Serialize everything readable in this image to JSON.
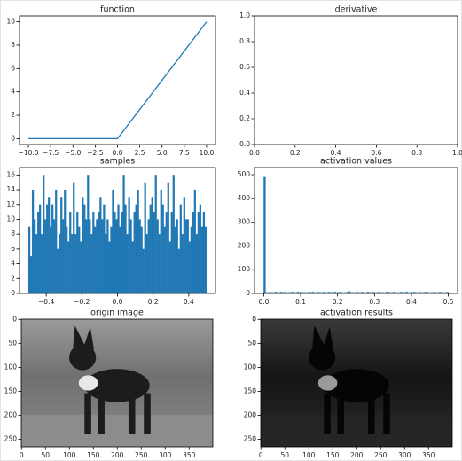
{
  "chart_data": [
    {
      "type": "line",
      "title": "function",
      "x": [
        -10,
        0,
        10
      ],
      "values": [
        0,
        0,
        10
      ],
      "color": "#1f77b4",
      "xlim": [
        -11,
        11
      ],
      "ylim": [
        -0.5,
        10.5
      ],
      "xticks": [
        {
          "value": -10,
          "label": "−10.0"
        },
        {
          "value": -7.5,
          "label": "−7.5"
        },
        {
          "value": -5,
          "label": "−5.0"
        },
        {
          "value": -2.5,
          "label": "−2.5"
        },
        {
          "value": 0,
          "label": "0.0"
        },
        {
          "value": 2.5,
          "label": "2.5"
        },
        {
          "value": 5,
          "label": "5.0"
        },
        {
          "value": 7.5,
          "label": "7.5"
        },
        {
          "value": 10,
          "label": "10.0"
        }
      ],
      "yticks": [
        0,
        2,
        4,
        6,
        8,
        10
      ]
    },
    {
      "type": "line",
      "title": "derivative",
      "xlim": [
        0,
        1
      ],
      "ylim": [
        0,
        1
      ],
      "xticks": [
        {
          "value": 0,
          "label": "0.0"
        },
        {
          "value": 0.2,
          "label": "0.2"
        },
        {
          "value": 0.4,
          "label": "0.4"
        },
        {
          "value": 0.6,
          "label": "0.6"
        },
        {
          "value": 0.8,
          "label": "0.8"
        },
        {
          "value": 1,
          "label": "1.0"
        }
      ],
      "yticks": [
        {
          "value": 0,
          "label": "0.0"
        },
        {
          "value": 0.2,
          "label": "0.2"
        },
        {
          "value": 0.4,
          "label": "0.4"
        },
        {
          "value": 0.6,
          "label": "0.6"
        },
        {
          "value": 0.8,
          "label": "0.8"
        },
        {
          "value": 1,
          "label": "1.0"
        }
      ]
    },
    {
      "type": "histogram",
      "title": "samples",
      "color": "#1f77b4",
      "bins": [
        -0.5,
        -0.49,
        -0.48,
        -0.47,
        -0.46,
        -0.45,
        -0.44,
        -0.43,
        -0.42,
        -0.41,
        -0.4,
        -0.39,
        -0.38,
        -0.37,
        -0.36,
        -0.35,
        -0.34,
        -0.33,
        -0.32,
        -0.31,
        -0.3,
        -0.29,
        -0.28,
        -0.27,
        -0.26,
        -0.25,
        -0.24,
        -0.23,
        -0.22,
        -0.21,
        -0.2,
        -0.19,
        -0.18,
        -0.17,
        -0.16,
        -0.15,
        -0.14,
        -0.13,
        -0.12,
        -0.11,
        -0.1,
        -0.09,
        -0.08,
        -0.07,
        -0.06,
        -0.05,
        -0.04,
        -0.03,
        -0.02,
        -0.01,
        0,
        0.01,
        0.02,
        0.03,
        0.04,
        0.05,
        0.06,
        0.07,
        0.08,
        0.09,
        0.1,
        0.11,
        0.12,
        0.13,
        0.14,
        0.15,
        0.16,
        0.17,
        0.18,
        0.19,
        0.2,
        0.21,
        0.22,
        0.23,
        0.24,
        0.25,
        0.26,
        0.27,
        0.28,
        0.29,
        0.3,
        0.31,
        0.32,
        0.33,
        0.34,
        0.35,
        0.36,
        0.37,
        0.38,
        0.39,
        0.4,
        0.41,
        0.42,
        0.43,
        0.44,
        0.45,
        0.46,
        0.47,
        0.48,
        0.49,
        0.5
      ],
      "values": [
        9,
        5,
        14,
        10,
        8,
        11,
        12,
        8,
        16,
        10,
        12,
        13,
        9,
        12,
        10,
        14,
        6,
        8,
        13,
        10,
        14,
        9,
        7,
        11,
        8,
        15,
        8,
        11,
        9,
        7,
        13,
        12,
        10,
        16,
        10,
        8,
        11,
        9,
        10,
        11,
        13,
        10,
        12,
        8,
        10,
        7,
        9,
        14,
        11,
        10,
        12,
        9,
        11,
        16,
        12,
        8,
        13,
        10,
        7,
        11,
        12,
        14,
        10,
        9,
        6,
        15,
        8,
        10,
        12,
        13,
        11,
        16,
        10,
        8,
        14,
        12,
        9,
        11,
        15,
        7,
        11,
        16,
        9,
        10,
        6,
        12,
        8,
        13,
        10,
        10,
        7,
        9,
        11,
        14,
        8,
        11,
        12,
        9,
        11,
        9
      ],
      "xlim": [
        -0.55,
        0.55
      ],
      "ylim": [
        0,
        17
      ],
      "xticks": [
        {
          "value": -0.4,
          "label": "−0.4"
        },
        {
          "value": -0.2,
          "label": "−0.2"
        },
        {
          "value": 0,
          "label": "0.0"
        },
        {
          "value": 0.2,
          "label": "0.2"
        },
        {
          "value": 0.4,
          "label": "0.4"
        }
      ],
      "yticks": [
        0,
        2,
        4,
        6,
        8,
        10,
        12,
        14,
        16
      ]
    },
    {
      "type": "histogram",
      "title": "activation values",
      "color": "#1f77b4",
      "bins": [
        0,
        0.005,
        0.01,
        0.015,
        0.02,
        0.025,
        0.03,
        0.035,
        0.04,
        0.045,
        0.05,
        0.055,
        0.06,
        0.065,
        0.07,
        0.075,
        0.08,
        0.085,
        0.09,
        0.095,
        0.1,
        0.105,
        0.11,
        0.115,
        0.12,
        0.125,
        0.13,
        0.135,
        0.14,
        0.145,
        0.15,
        0.155,
        0.16,
        0.165,
        0.17,
        0.175,
        0.18,
        0.185,
        0.19,
        0.195,
        0.2,
        0.205,
        0.21,
        0.215,
        0.22,
        0.225,
        0.23,
        0.235,
        0.24,
        0.245,
        0.25,
        0.255,
        0.26,
        0.265,
        0.27,
        0.275,
        0.28,
        0.285,
        0.29,
        0.295,
        0.3,
        0.305,
        0.31,
        0.315,
        0.32,
        0.325,
        0.33,
        0.335,
        0.34,
        0.345,
        0.35,
        0.355,
        0.36,
        0.365,
        0.37,
        0.375,
        0.38,
        0.385,
        0.39,
        0.395,
        0.4,
        0.405,
        0.41,
        0.415,
        0.42,
        0.425,
        0.43,
        0.435,
        0.44,
        0.445,
        0.45,
        0.455,
        0.46,
        0.465,
        0.47,
        0.475,
        0.48,
        0.485,
        0.49,
        0.495,
        0.5
      ],
      "values": [
        490,
        5,
        4,
        6,
        5,
        5,
        7,
        4,
        5,
        6,
        5,
        6,
        4,
        5,
        5,
        6,
        5,
        4,
        7,
        5,
        6,
        5,
        5,
        4,
        6,
        5,
        7,
        5,
        4,
        6,
        5,
        5,
        6,
        4,
        5,
        6,
        5,
        5,
        7,
        4,
        5,
        6,
        5,
        4,
        5,
        6,
        8,
        5,
        5,
        4,
        6,
        5,
        5,
        6,
        4,
        5,
        7,
        5,
        5,
        6,
        4,
        5,
        6,
        5,
        5,
        4,
        6,
        7,
        5,
        5,
        6,
        5,
        4,
        5,
        6,
        5,
        5,
        7,
        4,
        5,
        5,
        6,
        5,
        4,
        6,
        5,
        5,
        6,
        7,
        4,
        5,
        5,
        6,
        4,
        5,
        6,
        5,
        5,
        4,
        6
      ],
      "xlim": [
        -0.025,
        0.525
      ],
      "ylim": [
        0,
        530
      ],
      "xticks": [
        {
          "value": 0,
          "label": "0.0"
        },
        {
          "value": 0.1,
          "label": "0.1"
        },
        {
          "value": 0.2,
          "label": "0.2"
        },
        {
          "value": 0.3,
          "label": "0.3"
        },
        {
          "value": 0.4,
          "label": "0.4"
        },
        {
          "value": 0.5,
          "label": "0.5"
        }
      ],
      "yticks": [
        0,
        100,
        200,
        300,
        400,
        500
      ]
    },
    {
      "type": "image",
      "title": "origin image",
      "xlim": [
        -0.5,
        399.5
      ],
      "ylim": [
        265.5,
        -0.5
      ],
      "xticks": [
        0,
        50,
        100,
        150,
        200,
        250,
        300,
        350
      ],
      "yticks": [
        0,
        50,
        100,
        150,
        200,
        250
      ]
    },
    {
      "type": "image",
      "title": "activation results",
      "xlim": [
        -0.5,
        399.5
      ],
      "ylim": [
        265.5,
        -0.5
      ],
      "xticks": [
        0,
        50,
        100,
        150,
        200,
        250,
        300,
        350
      ],
      "yticks": [
        0,
        50,
        100,
        150,
        200,
        250
      ]
    }
  ]
}
